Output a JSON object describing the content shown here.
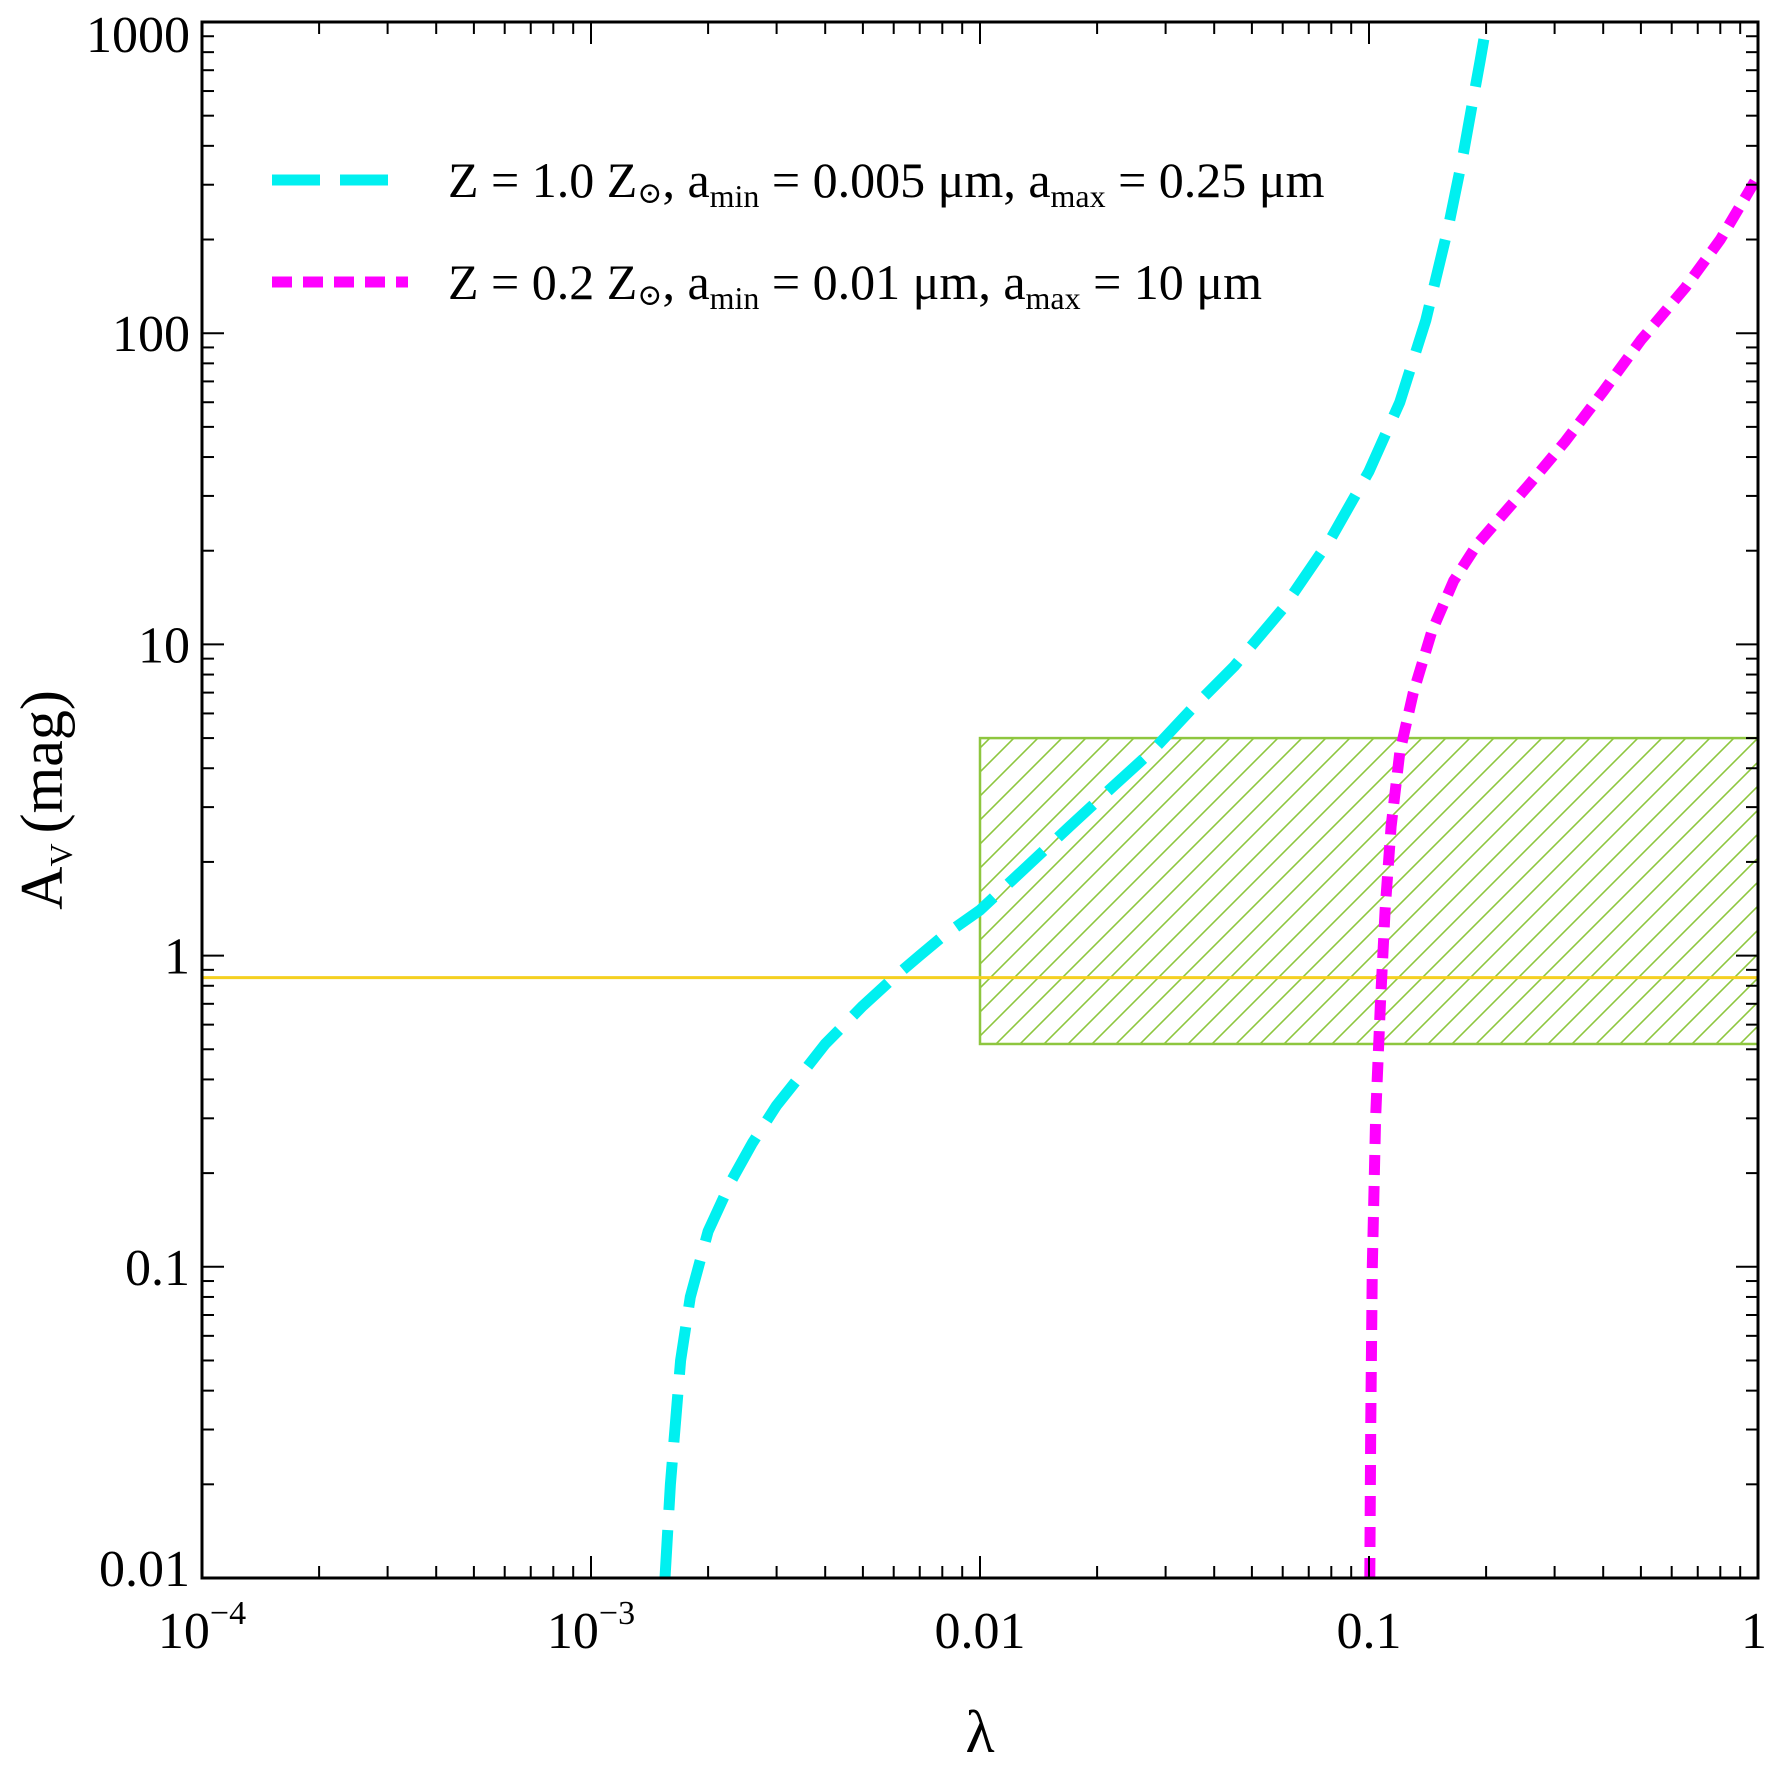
{
  "chart_data": {
    "type": "line",
    "xscale": "log",
    "yscale": "log",
    "xlim": [
      0.0001,
      1
    ],
    "ylim": [
      0.01,
      1000
    ],
    "xlabel": "λ",
    "ylabel": {
      "main": "A",
      "sub": "V",
      "unit": "(mag)"
    },
    "x_ticks": [
      {
        "value": 0.0001,
        "base": "10",
        "exp": "−4"
      },
      {
        "value": 0.001,
        "base": "10",
        "exp": "−3"
      },
      {
        "value": 0.01,
        "label": "0.01"
      },
      {
        "value": 0.1,
        "label": "0.1"
      },
      {
        "value": 1,
        "label": "1"
      }
    ],
    "y_ticks": [
      {
        "value": 0.01,
        "label": "0.01"
      },
      {
        "value": 0.1,
        "label": "0.1"
      },
      {
        "value": 1,
        "label": "1"
      },
      {
        "value": 10,
        "label": "10"
      },
      {
        "value": 100,
        "label": "100"
      },
      {
        "value": 1000,
        "label": "1000"
      }
    ],
    "series": [
      {
        "name": "Z = 1.0 Z⊙, amin = 0.005 μm, amax = 0.25 μm",
        "legend_parts": [
          "Z = 1.0 Z",
          "⊙",
          ", a",
          "min",
          " = 0.005 μm, a",
          "max",
          " = 0.25 μm"
        ],
        "color": "#00f0f0",
        "style": "long-dash",
        "x": [
          0.00155,
          0.0016,
          0.0017,
          0.0018,
          0.002,
          0.0023,
          0.0026,
          0.003,
          0.0035,
          0.004,
          0.005,
          0.006,
          0.007,
          0.008,
          0.01,
          0.013,
          0.017,
          0.022,
          0.028,
          0.035,
          0.045,
          0.06,
          0.08,
          0.1,
          0.12,
          0.14,
          0.16,
          0.175,
          0.185,
          0.193,
          0.198,
          0.202
        ],
        "y": [
          0.01,
          0.02,
          0.05,
          0.08,
          0.13,
          0.19,
          0.25,
          0.33,
          0.42,
          0.52,
          0.69,
          0.85,
          1.0,
          1.15,
          1.4,
          1.9,
          2.6,
          3.5,
          4.6,
          6.2,
          8.5,
          13,
          22,
          36,
          60,
          110,
          220,
          380,
          560,
          750,
          900,
          1000
        ]
      },
      {
        "name": "Z = 0.2 Z⊙, amin = 0.01 μm, amax = 10 μm",
        "legend_parts": [
          "Z = 0.2 Z",
          "⊙",
          ", a",
          "min",
          " = 0.01 μm, a",
          "max",
          " = 10 μm"
        ],
        "color": "#ff00ff",
        "style": "short-dash",
        "x": [
          0.1005,
          0.101,
          0.102,
          0.104,
          0.107,
          0.11,
          0.114,
          0.12,
          0.13,
          0.145,
          0.165,
          0.19,
          0.22,
          0.26,
          0.32,
          0.4,
          0.5,
          0.65,
          0.8,
          1.0
        ],
        "y": [
          0.01,
          0.03,
          0.1,
          0.3,
          0.7,
          1.4,
          2.6,
          4.5,
          7.0,
          11,
          16,
          21,
          26,
          33,
          45,
          65,
          95,
          140,
          200,
          320
        ]
      }
    ],
    "hline": {
      "y": 0.85,
      "color": "#f5d020"
    },
    "shaded_region": {
      "x": [
        0.01,
        1.0
      ],
      "y": [
        0.52,
        5.0
      ],
      "color": "#8ec63f",
      "pattern": "diagonal-hatch"
    },
    "legend_position": "top-left"
  }
}
